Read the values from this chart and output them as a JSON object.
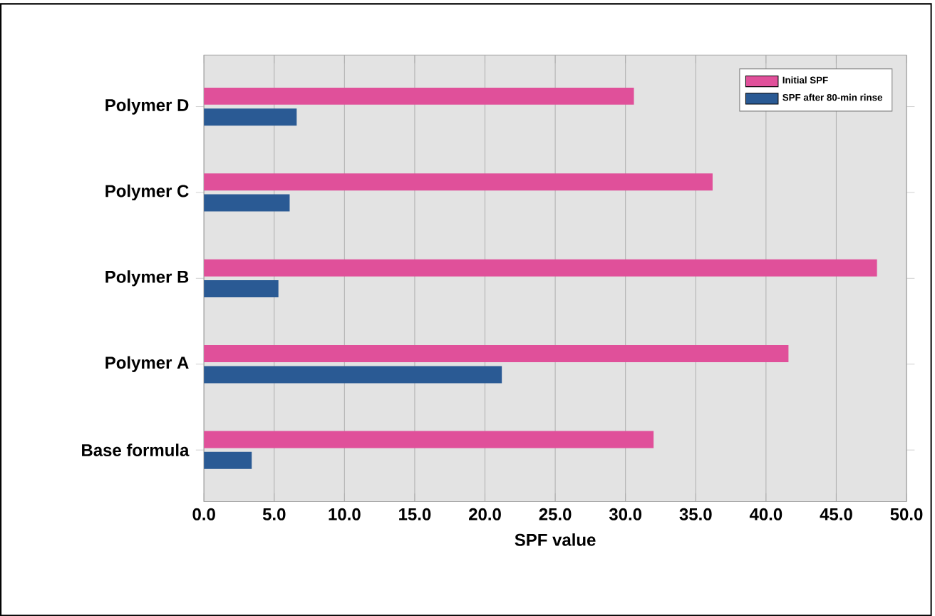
{
  "chart_data": {
    "type": "bar",
    "orientation": "horizontal",
    "xlabel": "SPF value",
    "categories": [
      "Polymer D",
      "Polymer C",
      "Polymer B",
      "Polymer A",
      "Base formula"
    ],
    "series": [
      {
        "name": "Initial SPF",
        "color": "#e0509a",
        "values": [
          30.6,
          36.2,
          47.9,
          41.6,
          32.0
        ]
      },
      {
        "name": "SPF after 80-min rinse",
        "color": "#2a5a94",
        "values": [
          6.6,
          6.1,
          5.3,
          21.2,
          3.4
        ]
      }
    ],
    "xlim": [
      0,
      50
    ],
    "xticks": [
      {
        "value": 0,
        "label": "0.0"
      },
      {
        "value": 5,
        "label": "5.0"
      },
      {
        "value": 10,
        "label": "10.0"
      },
      {
        "value": 15,
        "label": "15.0"
      },
      {
        "value": 20,
        "label": "20.0"
      },
      {
        "value": 25,
        "label": "25.0"
      },
      {
        "value": 30,
        "label": "30.0"
      },
      {
        "value": 35,
        "label": "35.0"
      },
      {
        "value": 40,
        "label": "40.0"
      },
      {
        "value": 45,
        "label": "45.0"
      },
      {
        "value": 50,
        "label": "50.0"
      }
    ],
    "grid": "x",
    "legend": "top right"
  }
}
